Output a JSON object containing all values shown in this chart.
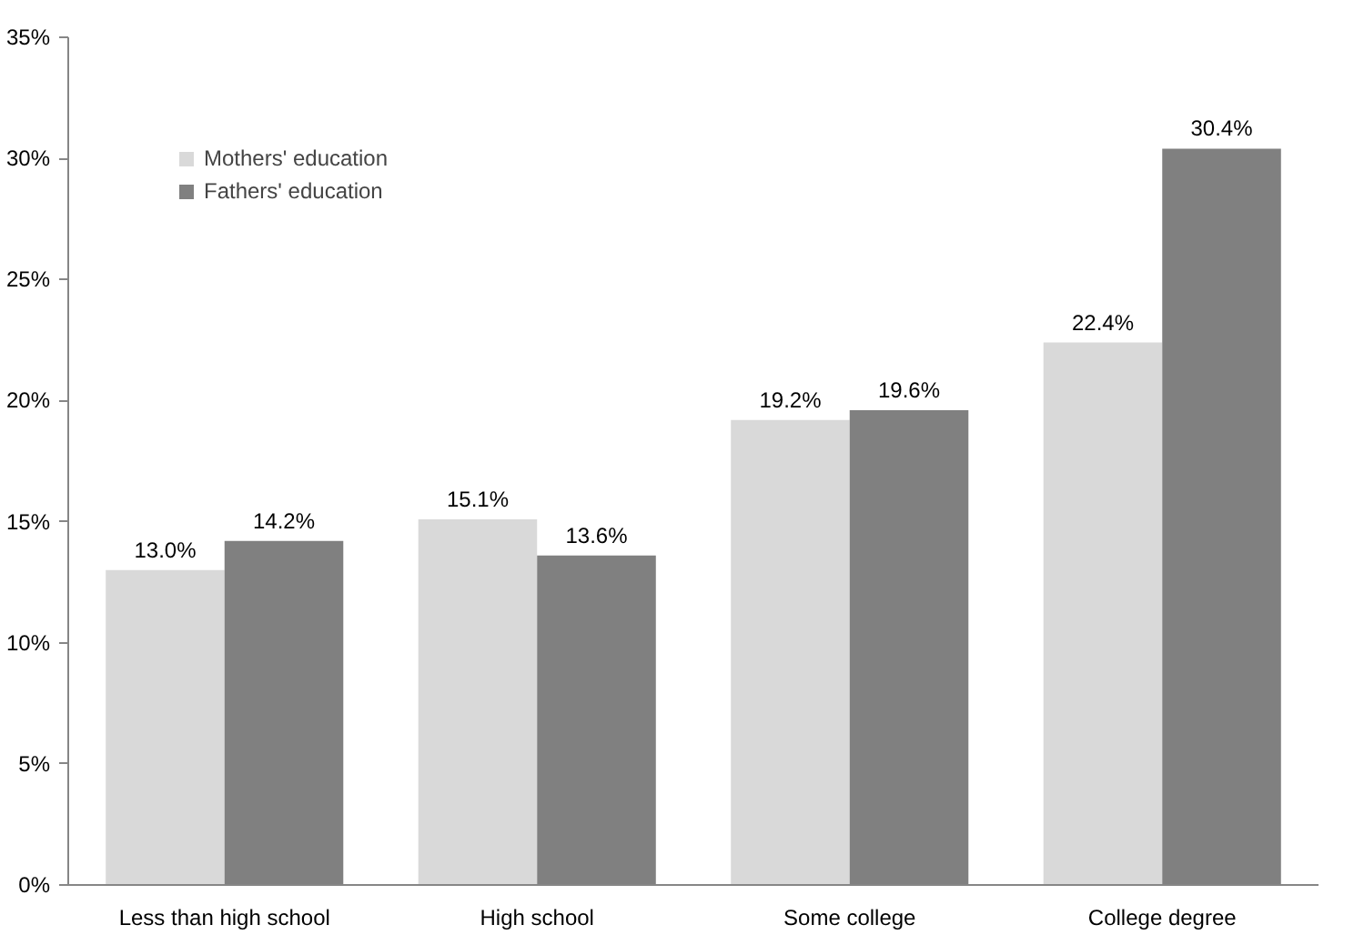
{
  "chart_data": {
    "type": "bar",
    "categories": [
      "Less than high school",
      "High school",
      "Some college",
      "College degree"
    ],
    "series": [
      {
        "name": "Mothers' education",
        "color": "#d9d9d9",
        "values": [
          13.0,
          15.1,
          19.2,
          22.4
        ],
        "value_labels": [
          "13.0%",
          "15.1%",
          "19.2%",
          "22.4%"
        ]
      },
      {
        "name": "Fathers' education",
        "color": "#808080",
        "values": [
          14.2,
          13.6,
          19.6,
          30.4
        ],
        "value_labels": [
          "14.2%",
          "13.6%",
          "19.6%",
          "30.4%"
        ]
      }
    ],
    "ylim": [
      0,
      35
    ],
    "yticks": [
      {
        "value": 0,
        "label": "0%"
      },
      {
        "value": 5,
        "label": "5%"
      },
      {
        "value": 10,
        "label": "10%"
      },
      {
        "value": 15,
        "label": "15%"
      },
      {
        "value": 20,
        "label": "20%"
      },
      {
        "value": 25,
        "label": "25%"
      },
      {
        "value": 30,
        "label": "30%"
      },
      {
        "value": 35,
        "label": "35%"
      }
    ],
    "grid": false,
    "legend": "top left"
  }
}
